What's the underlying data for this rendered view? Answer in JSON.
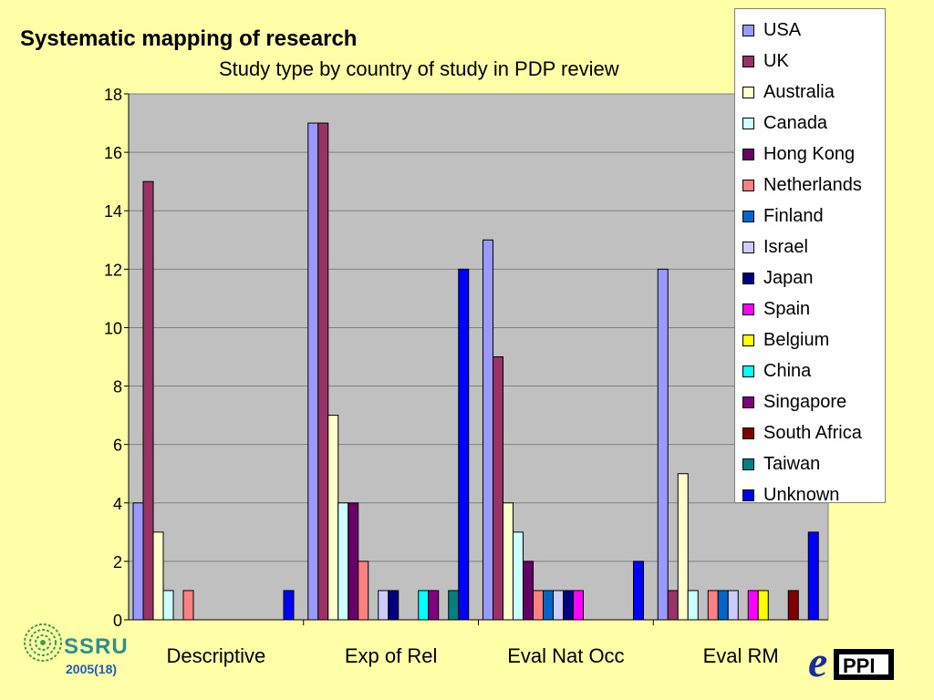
{
  "slide": {
    "title": "Systematic mapping of research",
    "footer_year": "2005(18)",
    "logo_left_text": "SSRU",
    "logo_right_e": "e",
    "logo_right_text": "PPI"
  },
  "chart_data": {
    "type": "bar",
    "title": "Study type by country of study in PDP review",
    "xlabel": "",
    "ylabel": "",
    "ylim": [
      0,
      18
    ],
    "yticks": [
      0,
      2,
      4,
      6,
      8,
      10,
      12,
      14,
      16,
      18
    ],
    "grid": true,
    "legend_position": "top-right",
    "categories": [
      "Descriptive",
      "Exp of Rel",
      "Eval Nat Occ",
      "Eval RM"
    ],
    "series": [
      {
        "name": "USA",
        "color": "#9999ff",
        "values": [
          4,
          17,
          13,
          12
        ]
      },
      {
        "name": "UK",
        "color": "#993366",
        "values": [
          15,
          17,
          9,
          1
        ]
      },
      {
        "name": "Australia",
        "color": "#ffffcc",
        "values": [
          3,
          7,
          4,
          5
        ]
      },
      {
        "name": "Canada",
        "color": "#ccffff",
        "values": [
          1,
          4,
          3,
          1
        ]
      },
      {
        "name": "Hong Kong",
        "color": "#660066",
        "values": [
          0,
          4,
          2,
          0
        ]
      },
      {
        "name": "Netherlands",
        "color": "#ff8080",
        "values": [
          1,
          2,
          1,
          1
        ]
      },
      {
        "name": "Finland",
        "color": "#0066cc",
        "values": [
          0,
          0,
          1,
          1
        ]
      },
      {
        "name": "Israel",
        "color": "#ccccff",
        "values": [
          0,
          1,
          1,
          1
        ]
      },
      {
        "name": "Japan",
        "color": "#000080",
        "values": [
          0,
          1,
          1,
          0
        ]
      },
      {
        "name": "Spain",
        "color": "#ff00ff",
        "values": [
          0,
          0,
          1,
          1
        ]
      },
      {
        "name": "Belgium",
        "color": "#ffff00",
        "values": [
          0,
          0,
          0,
          1
        ]
      },
      {
        "name": "China",
        "color": "#00ffff",
        "values": [
          0,
          1,
          0,
          0
        ]
      },
      {
        "name": "Singapore",
        "color": "#800080",
        "values": [
          0,
          1,
          0,
          0
        ]
      },
      {
        "name": "South Africa",
        "color": "#800000",
        "values": [
          0,
          0,
          0,
          1
        ]
      },
      {
        "name": "Taiwan",
        "color": "#008080",
        "values": [
          0,
          1,
          0,
          0
        ]
      },
      {
        "name": "Unknown",
        "color": "#0000ff",
        "values": [
          1,
          12,
          2,
          3
        ]
      }
    ]
  }
}
